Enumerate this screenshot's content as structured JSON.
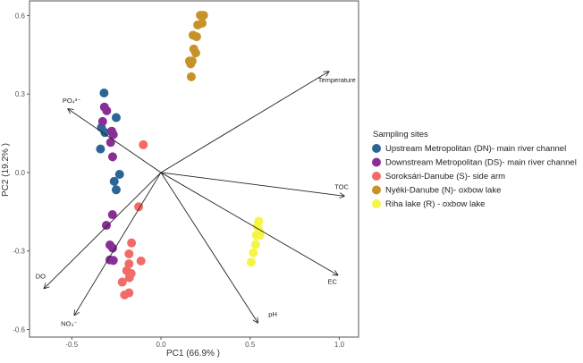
{
  "chart_data": {
    "type": "scatter",
    "xlabel": "PC1 (66.9% )",
    "ylabel": "PC2 (19.2% )",
    "xlim": [
      -0.737,
      1.108
    ],
    "ylim": [
      -0.629,
      0.656
    ],
    "xticks": [
      -0.5,
      0.0,
      0.5,
      1.0
    ],
    "xtick_labels": [
      "-0.5",
      "0.0",
      "0.5",
      "1.0"
    ],
    "yticks": [
      -0.6,
      -0.3,
      0.0,
      0.3,
      0.6
    ],
    "ytick_labels": [
      "-0.6",
      "-0.3",
      "0.0",
      "0.3",
      "0.6"
    ],
    "grid": false,
    "legend": {
      "title": "Sampling sites",
      "placement": "right"
    },
    "series": [
      {
        "name": "Upstream Metropolitan (DN)- main river channel",
        "color": "#2b6595",
        "points": [
          [
            -0.319,
            0.304
          ],
          [
            -0.251,
            0.21
          ],
          [
            -0.334,
            0.172
          ],
          [
            -0.314,
            0.153
          ],
          [
            -0.339,
            0.09
          ],
          [
            -0.232,
            -0.007
          ],
          [
            -0.262,
            -0.034
          ],
          [
            -0.251,
            -0.066
          ]
        ]
      },
      {
        "name": "Downstream Metropolitan (DS)- main river channel",
        "color": "#8a2e97",
        "points": [
          [
            -0.317,
            0.25
          ],
          [
            -0.304,
            0.236
          ],
          [
            -0.327,
            0.195
          ],
          [
            -0.276,
            0.158
          ],
          [
            -0.267,
            0.145
          ],
          [
            -0.282,
            0.115
          ],
          [
            -0.271,
            0.06
          ],
          [
            -0.272,
            -0.161
          ],
          [
            -0.306,
            -0.202
          ],
          [
            -0.286,
            -0.277
          ],
          [
            -0.271,
            -0.289
          ],
          [
            -0.286,
            -0.334
          ],
          [
            -0.267,
            -0.336
          ]
        ]
      },
      {
        "name": "Soroksári-Danube (S)- side arm",
        "color": "#f26b68",
        "points": [
          [
            -0.099,
            0.106
          ],
          [
            -0.125,
            -0.131
          ],
          [
            -0.165,
            -0.269
          ],
          [
            -0.179,
            -0.311
          ],
          [
            -0.112,
            -0.338
          ],
          [
            -0.179,
            -0.349
          ],
          [
            -0.192,
            -0.375
          ],
          [
            -0.167,
            -0.386
          ],
          [
            -0.177,
            -0.402
          ],
          [
            -0.217,
            -0.419
          ],
          [
            -0.204,
            -0.468
          ],
          [
            -0.179,
            -0.46
          ]
        ]
      },
      {
        "name": "Nyéki-Danube (N)- oxbow lake",
        "color": "#c8922a",
        "points": [
          [
            0.221,
            0.601
          ],
          [
            0.239,
            0.601
          ],
          [
            0.231,
            0.571
          ],
          [
            0.206,
            0.564
          ],
          [
            0.18,
            0.525
          ],
          [
            0.2,
            0.519
          ],
          [
            0.184,
            0.472
          ],
          [
            0.195,
            0.457
          ],
          [
            0.16,
            0.426
          ],
          [
            0.175,
            0.426
          ],
          [
            0.167,
            0.415
          ],
          [
            0.17,
            0.366
          ]
        ]
      },
      {
        "name": "Riha lake (R) - oxbow lake",
        "color": "#f6f545",
        "points": [
          [
            0.548,
            -0.186
          ],
          [
            0.54,
            -0.206
          ],
          [
            0.551,
            -0.223
          ],
          [
            0.535,
            -0.24
          ],
          [
            0.555,
            -0.24
          ],
          [
            0.531,
            -0.275
          ],
          [
            0.518,
            -0.307
          ],
          [
            0.506,
            -0.343
          ]
        ]
      }
    ],
    "loadings": [
      {
        "label": "Temperature",
        "x": 0.941,
        "y": 0.386
      },
      {
        "label": "TOC",
        "x": 1.028,
        "y": -0.09
      },
      {
        "label": "EC",
        "x": 0.991,
        "y": -0.392
      },
      {
        "label": "pH",
        "x": 0.543,
        "y": -0.574
      },
      {
        "label": "NO₃⁻",
        "x": -0.485,
        "y": -0.545
      },
      {
        "label": "DO",
        "x": -0.655,
        "y": -0.443
      },
      {
        "label": "PO₄³⁻",
        "x": -0.521,
        "y": 0.243
      }
    ]
  }
}
